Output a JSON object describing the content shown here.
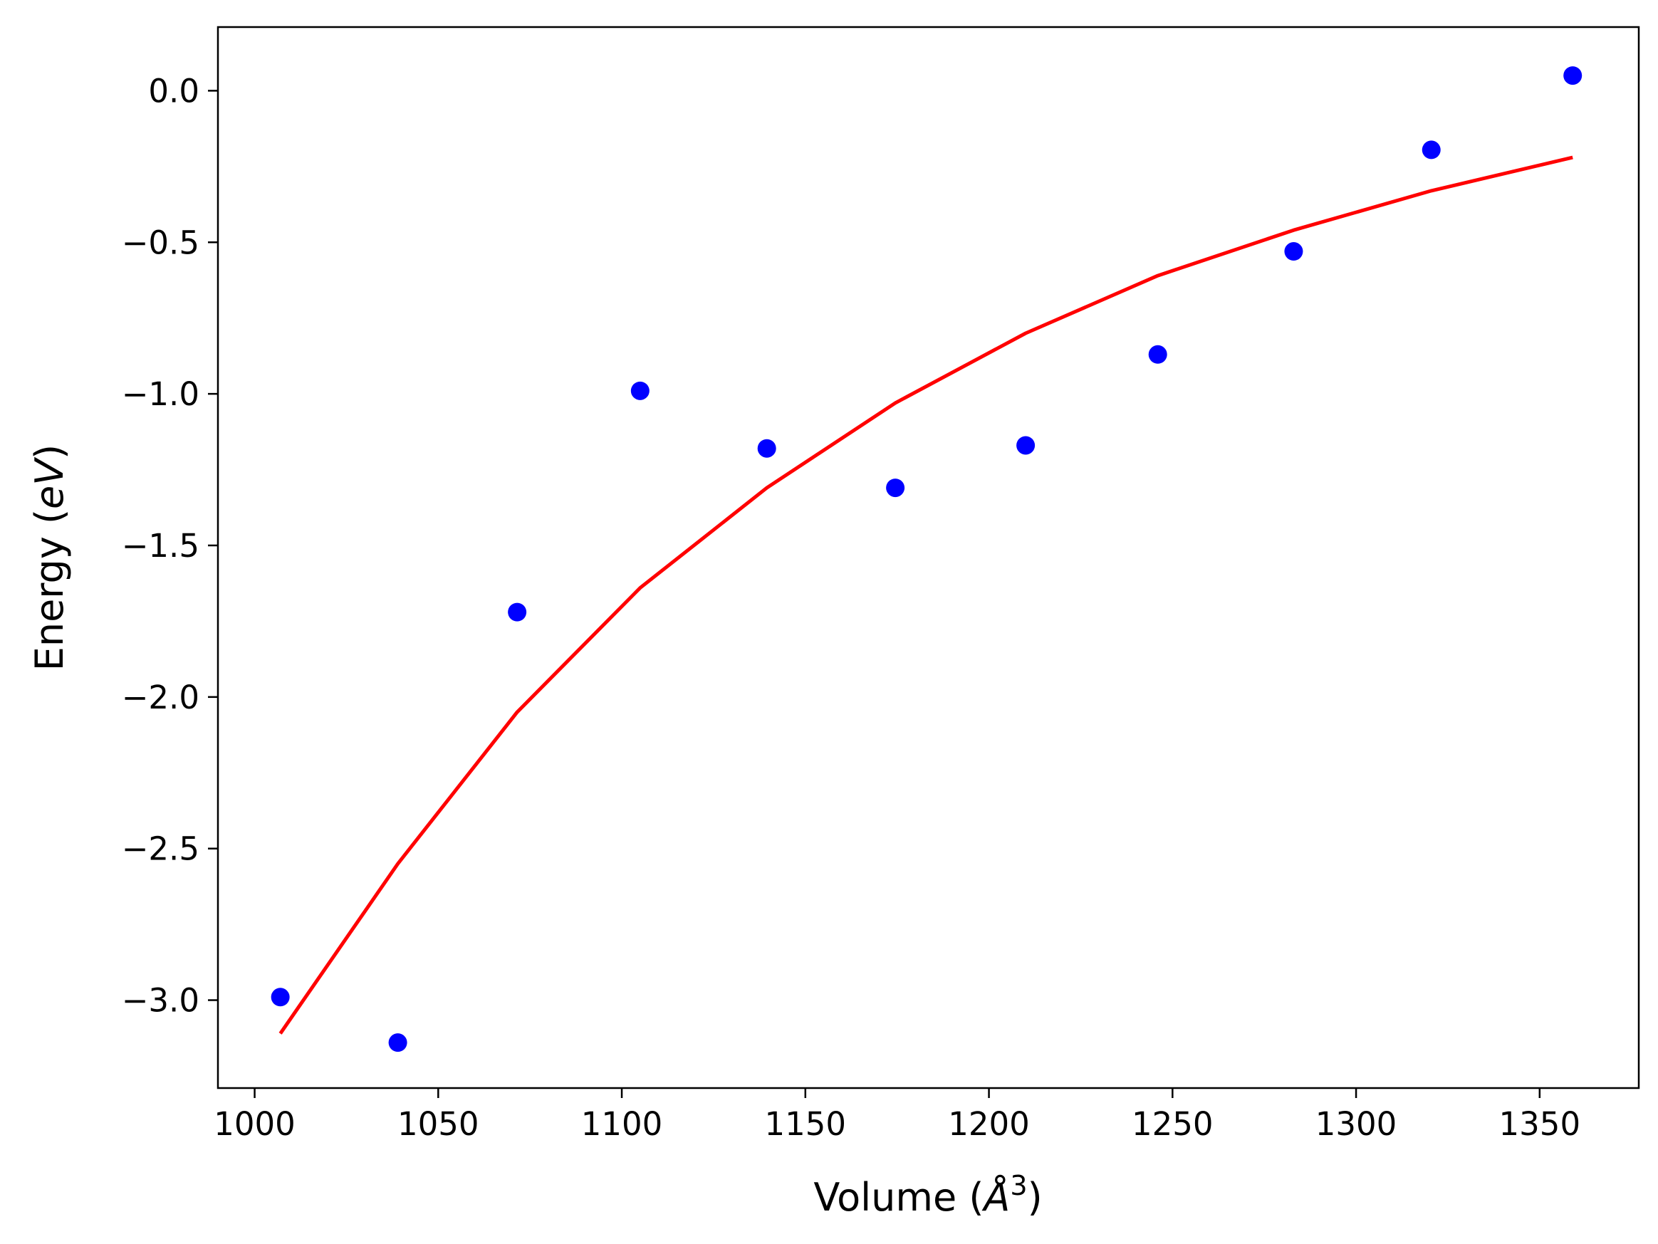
{
  "chart_data": {
    "type": "scatter",
    "xlabel": "Volume (Å³)",
    "ylabel": "Energy (eV)",
    "xlabel_parts": {
      "pre": "Volume (",
      "symbol": "Å",
      "sup": "3",
      "post": ")"
    },
    "ylabel_parts": {
      "pre": "Energy (",
      "italic": "eV",
      "post": ")"
    },
    "xlim": [
      990,
      1377
    ],
    "ylim": [
      -3.29,
      0.21
    ],
    "x_ticks": [
      1000,
      1050,
      1100,
      1150,
      1200,
      1250,
      1300,
      1350
    ],
    "x_tick_labels": [
      "1000",
      "1050",
      "1100",
      "1150",
      "1200",
      "1250",
      "1300",
      "1350"
    ],
    "y_ticks": [
      0.0,
      -0.5,
      -1.0,
      -1.5,
      -2.0,
      -2.5,
      -3.0
    ],
    "y_tick_labels": [
      "0.0",
      "−0.5",
      "−1.0",
      "−1.5",
      "−2.0",
      "−2.5",
      "−3.0"
    ],
    "grid": false,
    "series": [
      {
        "kind": "scatter",
        "color": "#0000ff",
        "x": [
          1007,
          1039,
          1071.5,
          1105,
          1139.5,
          1174.5,
          1210,
          1246,
          1283,
          1320.5,
          1359
        ],
        "y": [
          -2.99,
          -3.14,
          -1.72,
          -0.99,
          -1.18,
          -1.31,
          -1.17,
          -0.87,
          -0.53,
          -0.195,
          0.05
        ]
      },
      {
        "kind": "line",
        "color": "#ff0000",
        "x": [
          1007,
          1039,
          1071.5,
          1105,
          1139.5,
          1174.5,
          1210,
          1246,
          1283,
          1320.5,
          1359
        ],
        "y": [
          -3.11,
          -2.55,
          -2.05,
          -1.64,
          -1.31,
          -1.03,
          -0.8,
          -0.61,
          -0.46,
          -0.33,
          -0.22
        ]
      }
    ]
  }
}
